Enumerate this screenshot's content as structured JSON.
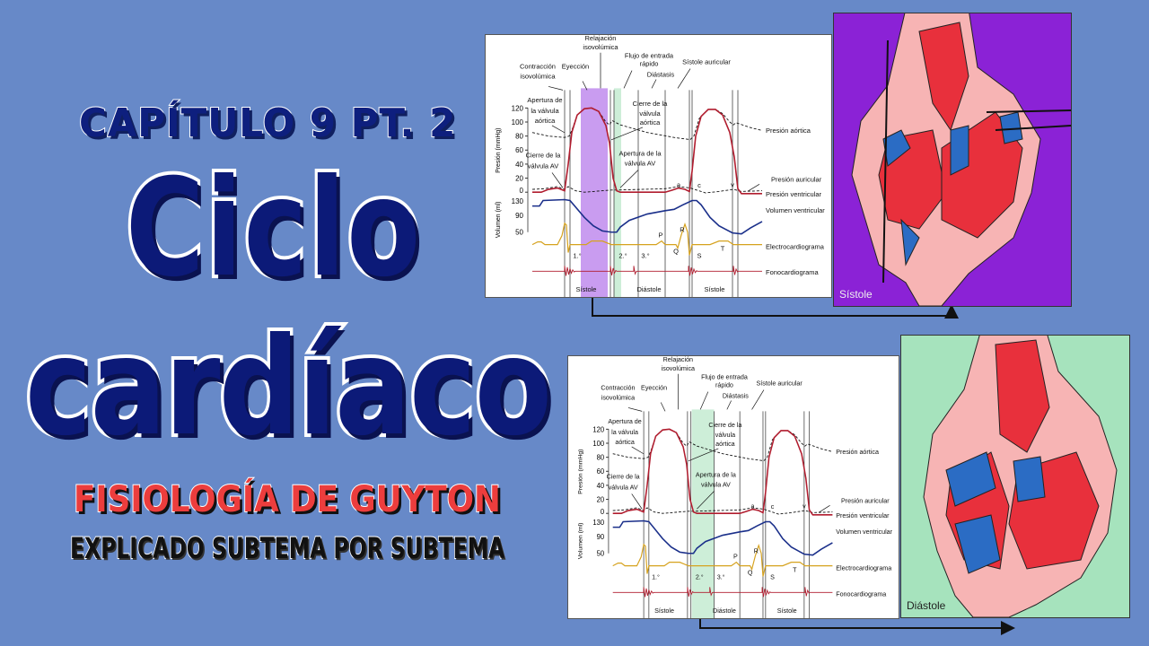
{
  "title": {
    "chapter": "CAPÍTULO 9 PT. 2",
    "line1": "Ciclo",
    "line2": "cardíaco",
    "subtitle": "FISIOLOGÍA DE GUYTON",
    "tagline": "EXPLICADO SUBTEMA POR SUBTEMA"
  },
  "colors": {
    "background": "#6789c8",
    "title": "#0c1a78",
    "subtitle": "#ec3d3d",
    "systole_panel": "#8b22d6",
    "diastole_panel": "#a6e3bd",
    "systole_highlight": "#c99cf0",
    "diastole_highlight": "#cdeed8",
    "ventricular_pressure": "#b01c2e",
    "volume": "#1a2f8a",
    "ecg": "#d6a21e"
  },
  "diagram": {
    "y_label_pressure": "Presión (mmHg)",
    "y_label_volume": "Volumen (ml)",
    "pressure_ticks": [
      "120",
      "100",
      "80",
      "60",
      "40",
      "20",
      "0"
    ],
    "volume_ticks": [
      "130",
      "90",
      "50"
    ],
    "labels": [
      "Relajación",
      "isovolúmica",
      "Flujo de entrada",
      "rápido",
      "Contracción",
      "isovolúmica",
      "Eyección",
      "Sístole auricular",
      "Diástasis",
      "Apertura de",
      "la válvula",
      "aórtica",
      "Cierre de la",
      "válvula",
      "aórtica",
      "Cierre de la",
      "válvula AV",
      "Apertura de la",
      "válvula AV",
      "Presión aórtica",
      "Presión auricular",
      "Presión ventricular",
      "Volumen ventricular",
      "Electrocardiograma",
      "Fonocardiograma",
      "a",
      "c",
      "v",
      "1.°",
      "2.°",
      "3.°",
      "P",
      "R",
      "Q",
      "S",
      "T",
      "Sístole",
      "Diástole",
      "Sístole"
    ]
  },
  "panels": {
    "top_caption": "Sístole",
    "bottom_caption": "Diástole"
  }
}
